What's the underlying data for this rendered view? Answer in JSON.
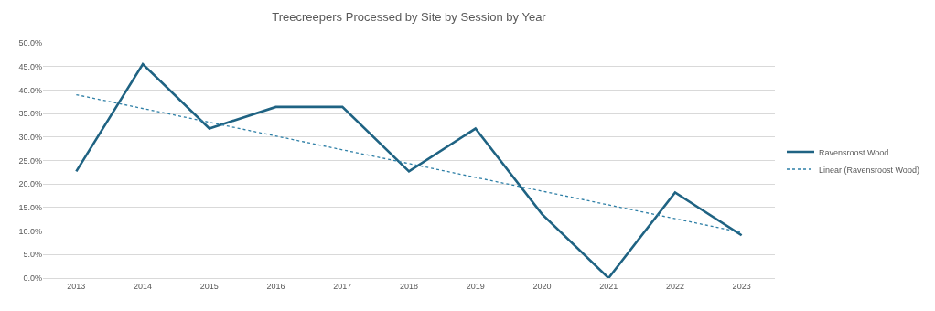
{
  "chart_data": {
    "type": "line",
    "title": "Treecreepers Processed by Site by Session by Year",
    "x": [
      2013,
      2014,
      2015,
      2016,
      2017,
      2018,
      2019,
      2020,
      2021,
      2022,
      2023
    ],
    "series": [
      {
        "name": "Ravensroost Wood",
        "color": "#1f6383",
        "values": [
          22.7,
          45.5,
          31.8,
          36.4,
          36.4,
          22.7,
          31.8,
          13.6,
          0.0,
          18.2,
          9.1
        ]
      },
      {
        "name": "Linear (Ravensroost Wood)",
        "color": "#2e7fa6",
        "type": "line",
        "line_style": "dotted",
        "x": [
          2013,
          2023
        ],
        "values": [
          39.0,
          9.7
        ]
      }
    ],
    "xlim": [
      2012.5,
      2023.5
    ],
    "xticks": [
      2013,
      2014,
      2015,
      2016,
      2017,
      2018,
      2019,
      2020,
      2021,
      2022,
      2023
    ],
    "ylim": [
      0,
      50
    ],
    "yticks": [
      {
        "value": 0,
        "label": "0.0%"
      },
      {
        "value": 5,
        "label": "5.0%"
      },
      {
        "value": 10,
        "label": "10.0%"
      },
      {
        "value": 15,
        "label": "15.0%"
      },
      {
        "value": 20,
        "label": "20.0%"
      },
      {
        "value": 25,
        "label": "25.0%"
      },
      {
        "value": 30,
        "label": "30.0%"
      },
      {
        "value": 35,
        "label": "35.0%"
      },
      {
        "value": 40,
        "label": "40.0%"
      },
      {
        "value": 45,
        "label": "45.0%"
      },
      {
        "value": 50,
        "label": "50.0%"
      }
    ],
    "grid": "y",
    "legend": "right",
    "marker": "none",
    "line_style": "solid"
  }
}
